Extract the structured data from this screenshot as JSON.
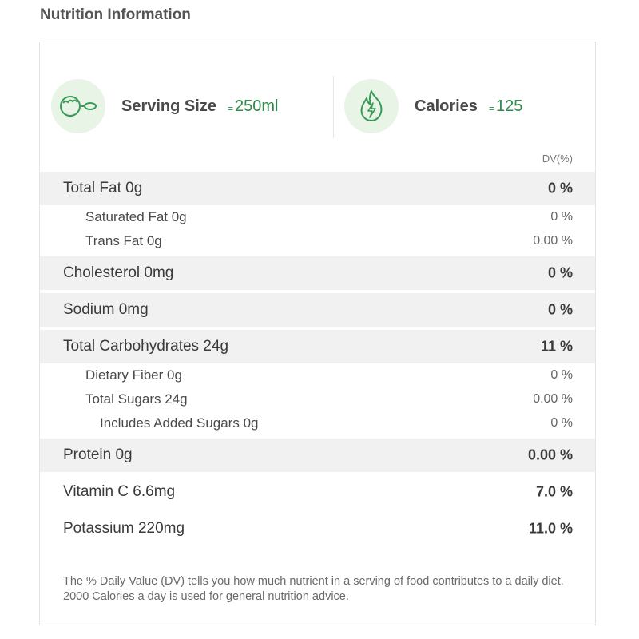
{
  "title": "Nutrition Information",
  "serving": {
    "label": "Serving Size",
    "eq": "=",
    "value": "250ml",
    "icon": "measuring-scoop-icon"
  },
  "calories": {
    "label": "Calories",
    "eq": "=",
    "value": "125",
    "icon": "flame-icon"
  },
  "dv_header": "DV(%)",
  "colors": {
    "accent": "#2d8a4a",
    "icon_bg": "#e8f4e6",
    "row_shade": "#f1f1f1"
  },
  "rows": [
    {
      "name": "Total Fat 0g",
      "dv": "0 %"
    },
    {
      "name": "Saturated Fat 0g",
      "dv": "0 %"
    },
    {
      "name": "Trans Fat 0g",
      "dv": "0.00 %"
    },
    {
      "name": "Cholesterol 0mg",
      "dv": "0 %"
    },
    {
      "name": "Sodium 0mg",
      "dv": "0 %"
    },
    {
      "name": "Total Carbohydrates 24g",
      "dv": "11 %"
    },
    {
      "name": "Dietary Fiber 0g",
      "dv": "0 %"
    },
    {
      "name": "Total Sugars 24g",
      "dv": "0.00 %"
    },
    {
      "name": "Includes Added Sugars 0g",
      "dv": "0 %"
    },
    {
      "name": "Protein 0g",
      "dv": "0.00 %"
    },
    {
      "name": "Vitamin C 6.6mg",
      "dv": "7.0 %"
    },
    {
      "name": "Potassium 220mg",
      "dv": "11.0 %"
    }
  ],
  "footnote": "The % Daily Value (DV) tells you how much nutrient in a serving of food contributes to a daily diet. 2000 Calories a day is used for general nutrition advice."
}
